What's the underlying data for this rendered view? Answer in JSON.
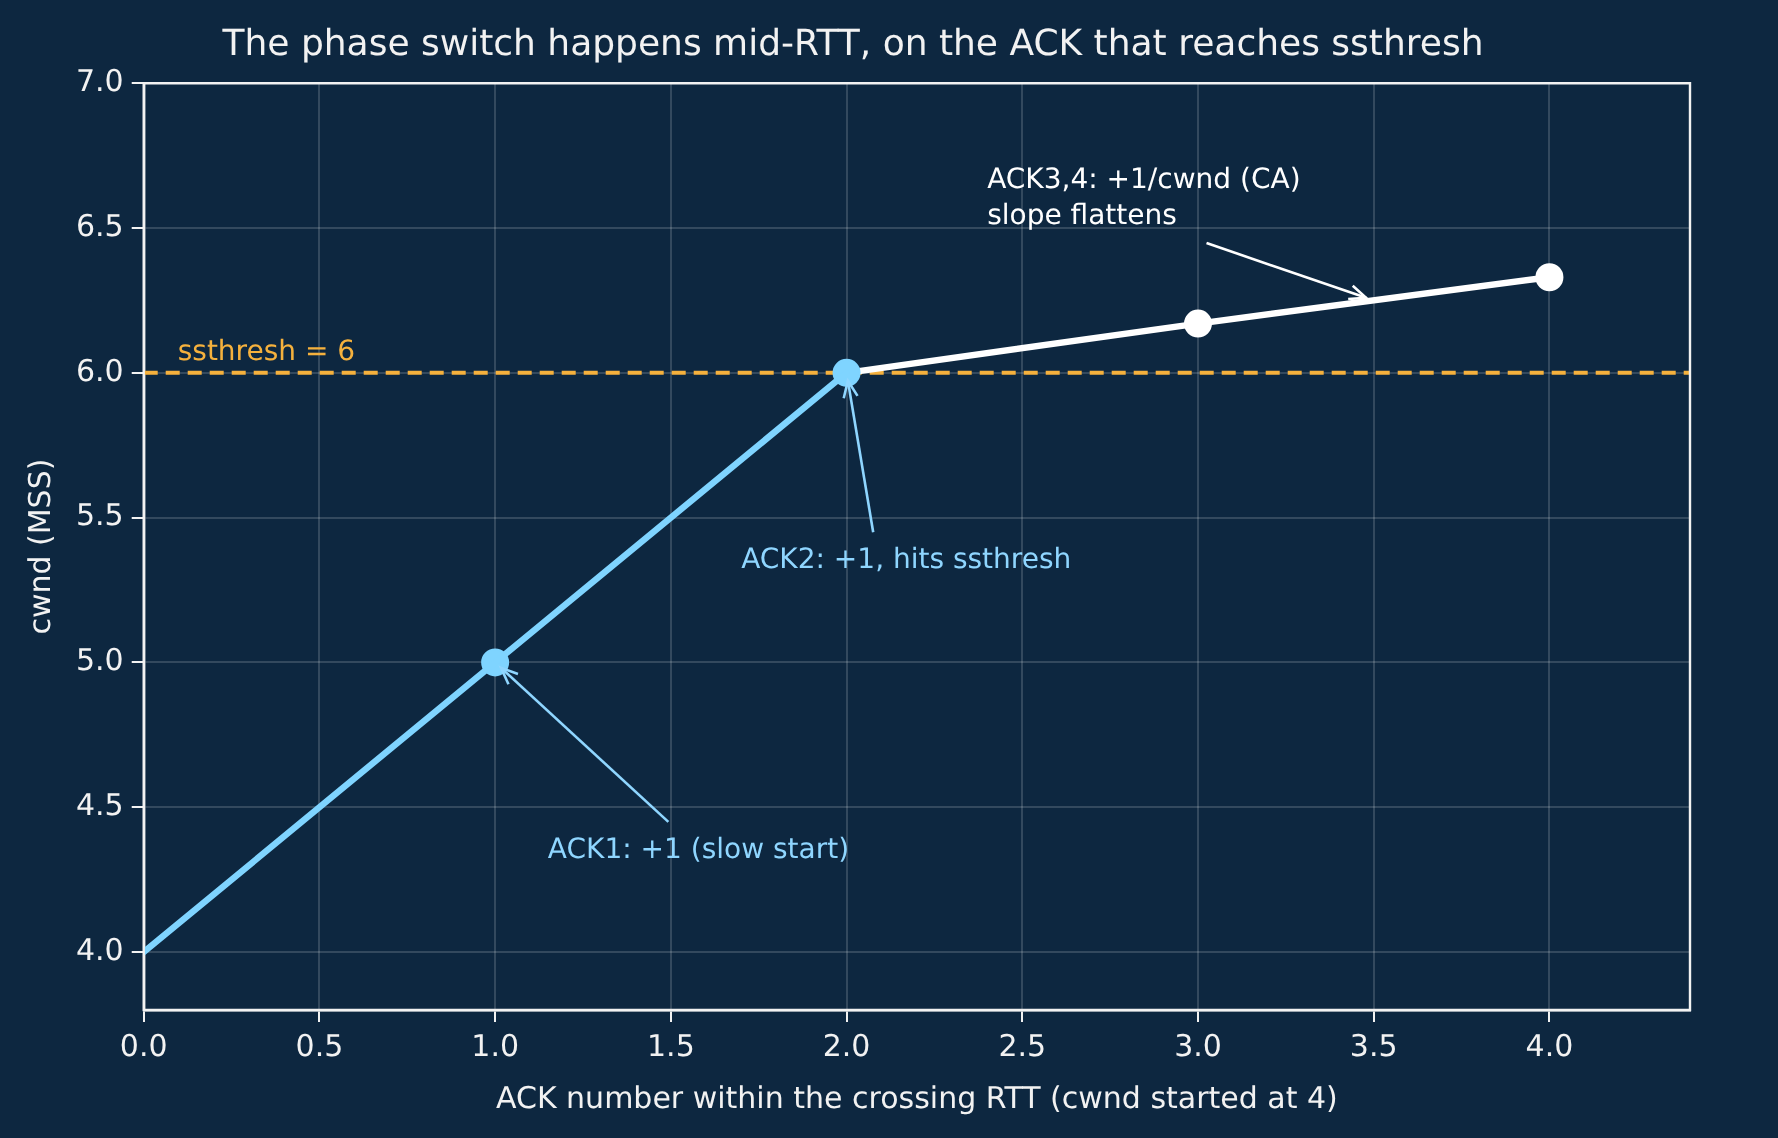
{
  "chart_data": {
    "type": "line",
    "title": "The phase switch happens mid-RTT, on the ACK that reaches ssthresh",
    "xlabel": "ACK number within the crossing RTT (cwnd started at 4)",
    "ylabel": "cwnd (MSS)",
    "series": [
      {
        "type": "line",
        "color": "#7fd4ff",
        "x": [
          0,
          1,
          2
        ],
        "values": [
          4,
          5,
          6
        ],
        "marker": "none"
      },
      {
        "type": "scatter",
        "color": "#7fd4ff",
        "x": [
          1,
          2
        ],
        "values": [
          5,
          6
        ],
        "marker": "circle"
      },
      {
        "type": "line",
        "color": "#ffffff",
        "x": [
          2,
          3,
          4
        ],
        "values": [
          6,
          6.17,
          6.33
        ],
        "marker": "none"
      },
      {
        "type": "scatter",
        "color": "#ffffff",
        "x": [
          3,
          4
        ],
        "values": [
          6.17,
          6.33
        ],
        "marker": "circle"
      }
    ],
    "xlim": [
      0,
      4.4
    ],
    "xticks": [
      {
        "value": 0,
        "label": "0.0"
      },
      {
        "value": 0.5,
        "label": "0.5"
      },
      {
        "value": 1,
        "label": "1.0"
      },
      {
        "value": 1.5,
        "label": "1.5"
      },
      {
        "value": 2,
        "label": "2.0"
      },
      {
        "value": 2.5,
        "label": "2.5"
      },
      {
        "value": 3,
        "label": "3.0"
      },
      {
        "value": 3.5,
        "label": "3.5"
      },
      {
        "value": 4,
        "label": "4.0"
      }
    ],
    "ylim": [
      3.8,
      7.0
    ],
    "yticks": [
      {
        "value": 4,
        "label": "4.0"
      },
      {
        "value": 4.5,
        "label": "4.5"
      },
      {
        "value": 5,
        "label": "5.0"
      },
      {
        "value": 5.5,
        "label": "5.5"
      },
      {
        "value": 6,
        "label": "6.0"
      },
      {
        "value": 6.5,
        "label": "6.5"
      },
      {
        "value": 7,
        "label": "7.0"
      }
    ],
    "grid": true,
    "legend": false,
    "ref_lines": [
      {
        "axis": "y",
        "value": 6,
        "label": "ssthresh = 6",
        "color": "#f5b13d",
        "line_style": "dashed"
      }
    ],
    "annotations": [
      {
        "text": "ACK1: +1 (slow start)",
        "x": 1,
        "y": 5
      },
      {
        "text": "ACK2: +1, hits ssthresh",
        "x": 2,
        "y": 6
      },
      {
        "text": "ACK3,4: +1/cwnd (CA)\nslope flattens",
        "x": 3.5,
        "y": 6.25
      }
    ]
  }
}
